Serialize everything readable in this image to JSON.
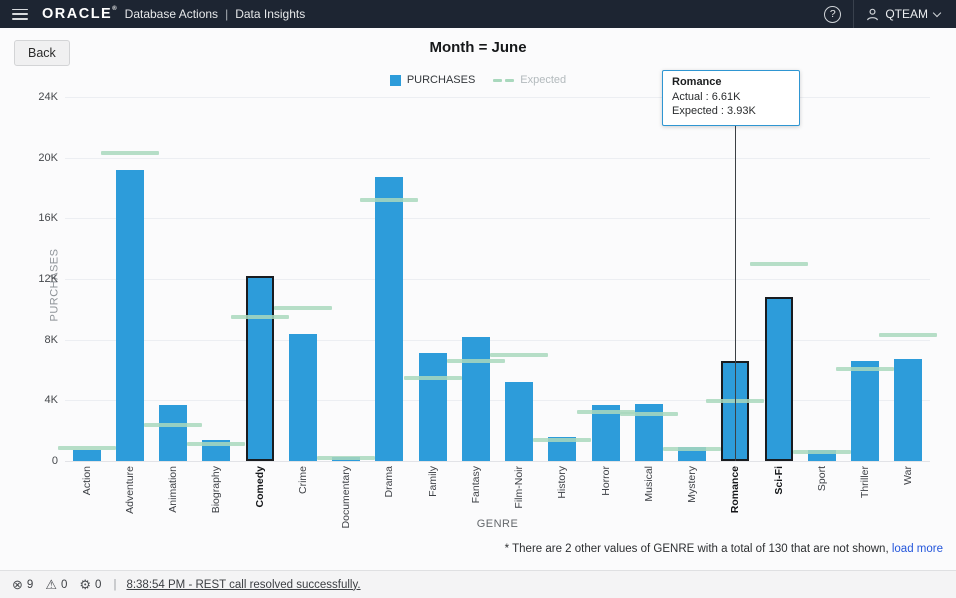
{
  "header": {
    "brand": "ORACLE",
    "brand_mark": "®",
    "app": "Database Actions",
    "divider": "|",
    "page": "Data Insights",
    "help_glyph": "?",
    "user": "QTEAM",
    "bg_color": "#1d2532"
  },
  "toolbar": {
    "back_label": "Back"
  },
  "chart_data": {
    "type": "bar",
    "title": "Month = June",
    "xlabel": "GENRE",
    "ylabel": "PURCHASES",
    "ylim": [
      0,
      24000
    ],
    "ytick_labels": [
      "0",
      "4K",
      "8K",
      "12K",
      "16K",
      "20K",
      "24K"
    ],
    "grid": true,
    "legend_position": "top-center",
    "categories": [
      "Action",
      "Adventure",
      "Animation",
      "Biography",
      "Comedy",
      "Crime",
      "Documentary",
      "Drama",
      "Family",
      "Fantasy",
      "Film-Noir",
      "History",
      "Horror",
      "Musical",
      "Mystery",
      "Romance",
      "Sci-Fi",
      "Sport",
      "Thriller",
      "War"
    ],
    "series": [
      {
        "name": "PURCHASES",
        "color": "#2d9cda",
        "values": [
          720,
          19200,
          3700,
          1400,
          12200,
          8400,
          250,
          18700,
          7100,
          8200,
          5200,
          1600,
          3700,
          3750,
          900,
          6610,
          10800,
          700,
          6600,
          6700
        ]
      },
      {
        "name": "Expected",
        "color": "#a9d8bd",
        "values": [
          850,
          20300,
          2400,
          1100,
          9500,
          10100,
          200,
          17200,
          5500,
          6600,
          7000,
          1400,
          3200,
          3100,
          800,
          3930,
          13000,
          600,
          6050,
          8300
        ]
      }
    ],
    "highlighted": [
      "Comedy",
      "Romance",
      "Sci-Fi"
    ]
  },
  "tooltip": {
    "category": "Romance",
    "actual": "Actual : 6.61K",
    "expected": "Expected : 3.93K"
  },
  "footnote": {
    "text": "* There are 2 other values of GENRE with a total of 130 that are not shown,",
    "link": "load more"
  },
  "statusbar": {
    "error_glyph": "⊗",
    "errors": "9",
    "warning_glyph": "⚠",
    "warnings": "0",
    "process_glyph": "⚙",
    "processes": "0",
    "separator": "|",
    "message": "8:38:54 PM - REST call resolved successfully."
  }
}
